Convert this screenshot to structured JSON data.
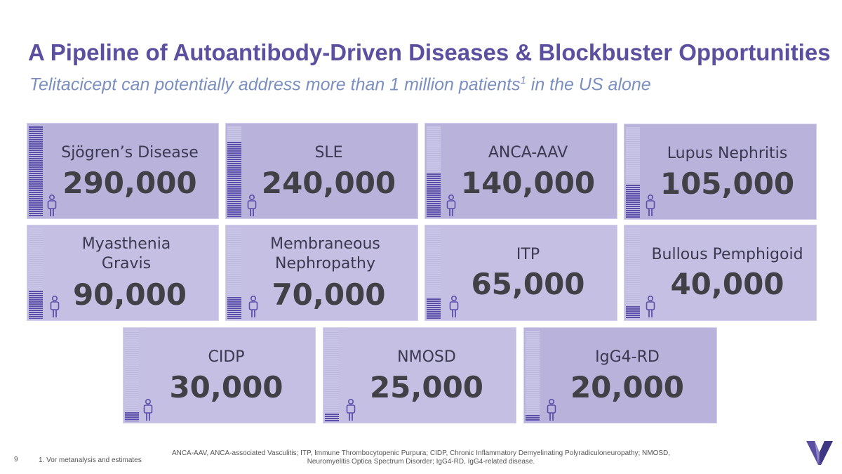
{
  "header": {
    "title": "A Pipeline of Autoantibody-Driven Diseases & Blockbuster Opportunities",
    "subtitle_pre": "Telitacicept can potentially address more than 1 million patients",
    "subtitle_sup": "1",
    "subtitle_post": " in the US alone"
  },
  "diseases": [
    {
      "name": "Sjögren’s Disease",
      "value": "290,000",
      "patients": 290000
    },
    {
      "name": "SLE",
      "value": "240,000",
      "patients": 240000
    },
    {
      "name": "ANCA-AAV",
      "value": "140,000",
      "patients": 140000
    },
    {
      "name": "Lupus Nephritis",
      "value": "105,000",
      "patients": 105000
    },
    {
      "name": "Myasthenia Gravis",
      "value": "90,000",
      "patients": 90000
    },
    {
      "name": "Membraneous Nephropathy",
      "value": "70,000",
      "patients": 70000
    },
    {
      "name": "ITP",
      "value": "65,000",
      "patients": 65000
    },
    {
      "name": "Bullous Pemphigoid",
      "value": "40,000",
      "patients": 40000
    },
    {
      "name": "CIDP",
      "value": "30,000",
      "patients": 30000
    },
    {
      "name": "NMOSD",
      "value": "25,000",
      "patients": 25000
    },
    {
      "name": "IgG4-RD",
      "value": "20,000",
      "patients": 20000
    }
  ],
  "scale_max_patients": 290000,
  "footer": {
    "page_number": "9",
    "footnote": "1. Vor metanalysis and estimates",
    "abbreviations": "ANCA-AAV, ANCA-associated Vasculitis; ITP, Immune Thrombocytopenic Purpura; CIDP, Chronic Inflammatory Demyelinating Polyradiculoneuropathy; NMOSD, Neuromyelitis Optica Spectrum Disorder; IgG4-RD, IgG4-related disease."
  },
  "colors": {
    "accent": "#5b4fa0",
    "subtitle": "#7b8fc0",
    "card": "#b9b3dc",
    "bar_fill": "#5a4ea8"
  }
}
